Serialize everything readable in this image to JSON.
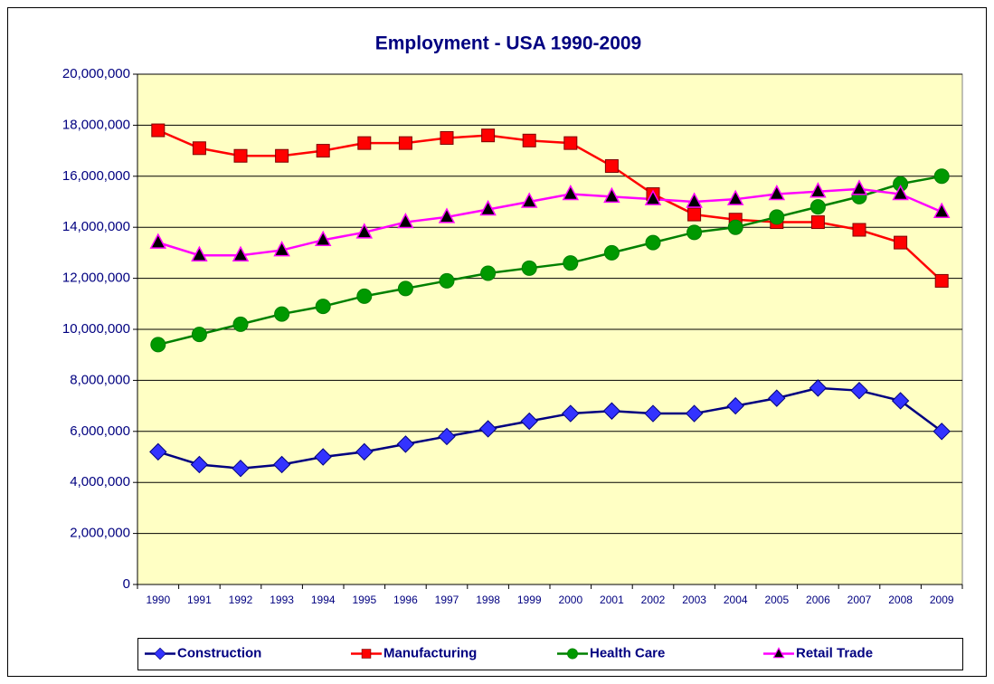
{
  "chart_data": {
    "type": "line",
    "title": "Employment - USA 1990-2009",
    "categories": [
      "1990",
      "1991",
      "1992",
      "1993",
      "1994",
      "1995",
      "1996",
      "1997",
      "1998",
      "1999",
      "2000",
      "2001",
      "2002",
      "2003",
      "2004",
      "2005",
      "2006",
      "2007",
      "2008",
      "2009"
    ],
    "series": [
      {
        "name": "Construction",
        "color": "#000080",
        "marker": "diamond",
        "marker_color": "#3333ff",
        "values": [
          5200000,
          4700000,
          4550000,
          4700000,
          5000000,
          5200000,
          5500000,
          5800000,
          6100000,
          6400000,
          6700000,
          6800000,
          6700000,
          6700000,
          7000000,
          7300000,
          7700000,
          7600000,
          7200000,
          6000000
        ]
      },
      {
        "name": "Manufacturing",
        "color": "#ff0000",
        "marker": "square",
        "marker_color": "#ff0000",
        "values": [
          17800000,
          17100000,
          16800000,
          16800000,
          17000000,
          17300000,
          17300000,
          17500000,
          17600000,
          17400000,
          17300000,
          16400000,
          15300000,
          14500000,
          14300000,
          14200000,
          14200000,
          13900000,
          13400000,
          11900000
        ]
      },
      {
        "name": "Health Care",
        "color": "#008000",
        "marker": "circle",
        "marker_color": "#009900",
        "values": [
          9400000,
          9800000,
          10200000,
          10600000,
          10900000,
          11300000,
          11600000,
          11900000,
          12200000,
          12400000,
          12600000,
          13000000,
          13400000,
          13800000,
          14000000,
          14400000,
          14800000,
          15200000,
          15700000,
          16000000
        ]
      },
      {
        "name": "Retail Trade",
        "color": "#ff00ff",
        "marker": "triangle",
        "marker_color": "#000000",
        "values": [
          13400000,
          12900000,
          12900000,
          13100000,
          13500000,
          13800000,
          14200000,
          14400000,
          14700000,
          15000000,
          15300000,
          15200000,
          15100000,
          15000000,
          15100000,
          15300000,
          15400000,
          15500000,
          15300000,
          14600000
        ]
      }
    ],
    "ylim": [
      0,
      20000000
    ],
    "yticks": [
      0,
      {
        "value": 2000000,
        "label": "2,000,000"
      },
      {
        "value": 4000000,
        "label": "4,000,000"
      },
      {
        "value": 6000000,
        "label": "6,000,000"
      },
      {
        "value": 8000000,
        "label": "8,000,000"
      },
      {
        "value": 10000000,
        "label": "10,000,000"
      },
      {
        "value": 12000000,
        "label": "12,000,000"
      },
      {
        "value": 14000000,
        "label": "14,000,000"
      },
      {
        "value": 16000000,
        "label": "16,000,000"
      },
      {
        "value": 18000000,
        "label": "18,000,000"
      },
      {
        "value": 20000000,
        "label": "20,000,000"
      }
    ],
    "grid": true,
    "legend": "bottom",
    "plot_background": "#ffffc4"
  }
}
